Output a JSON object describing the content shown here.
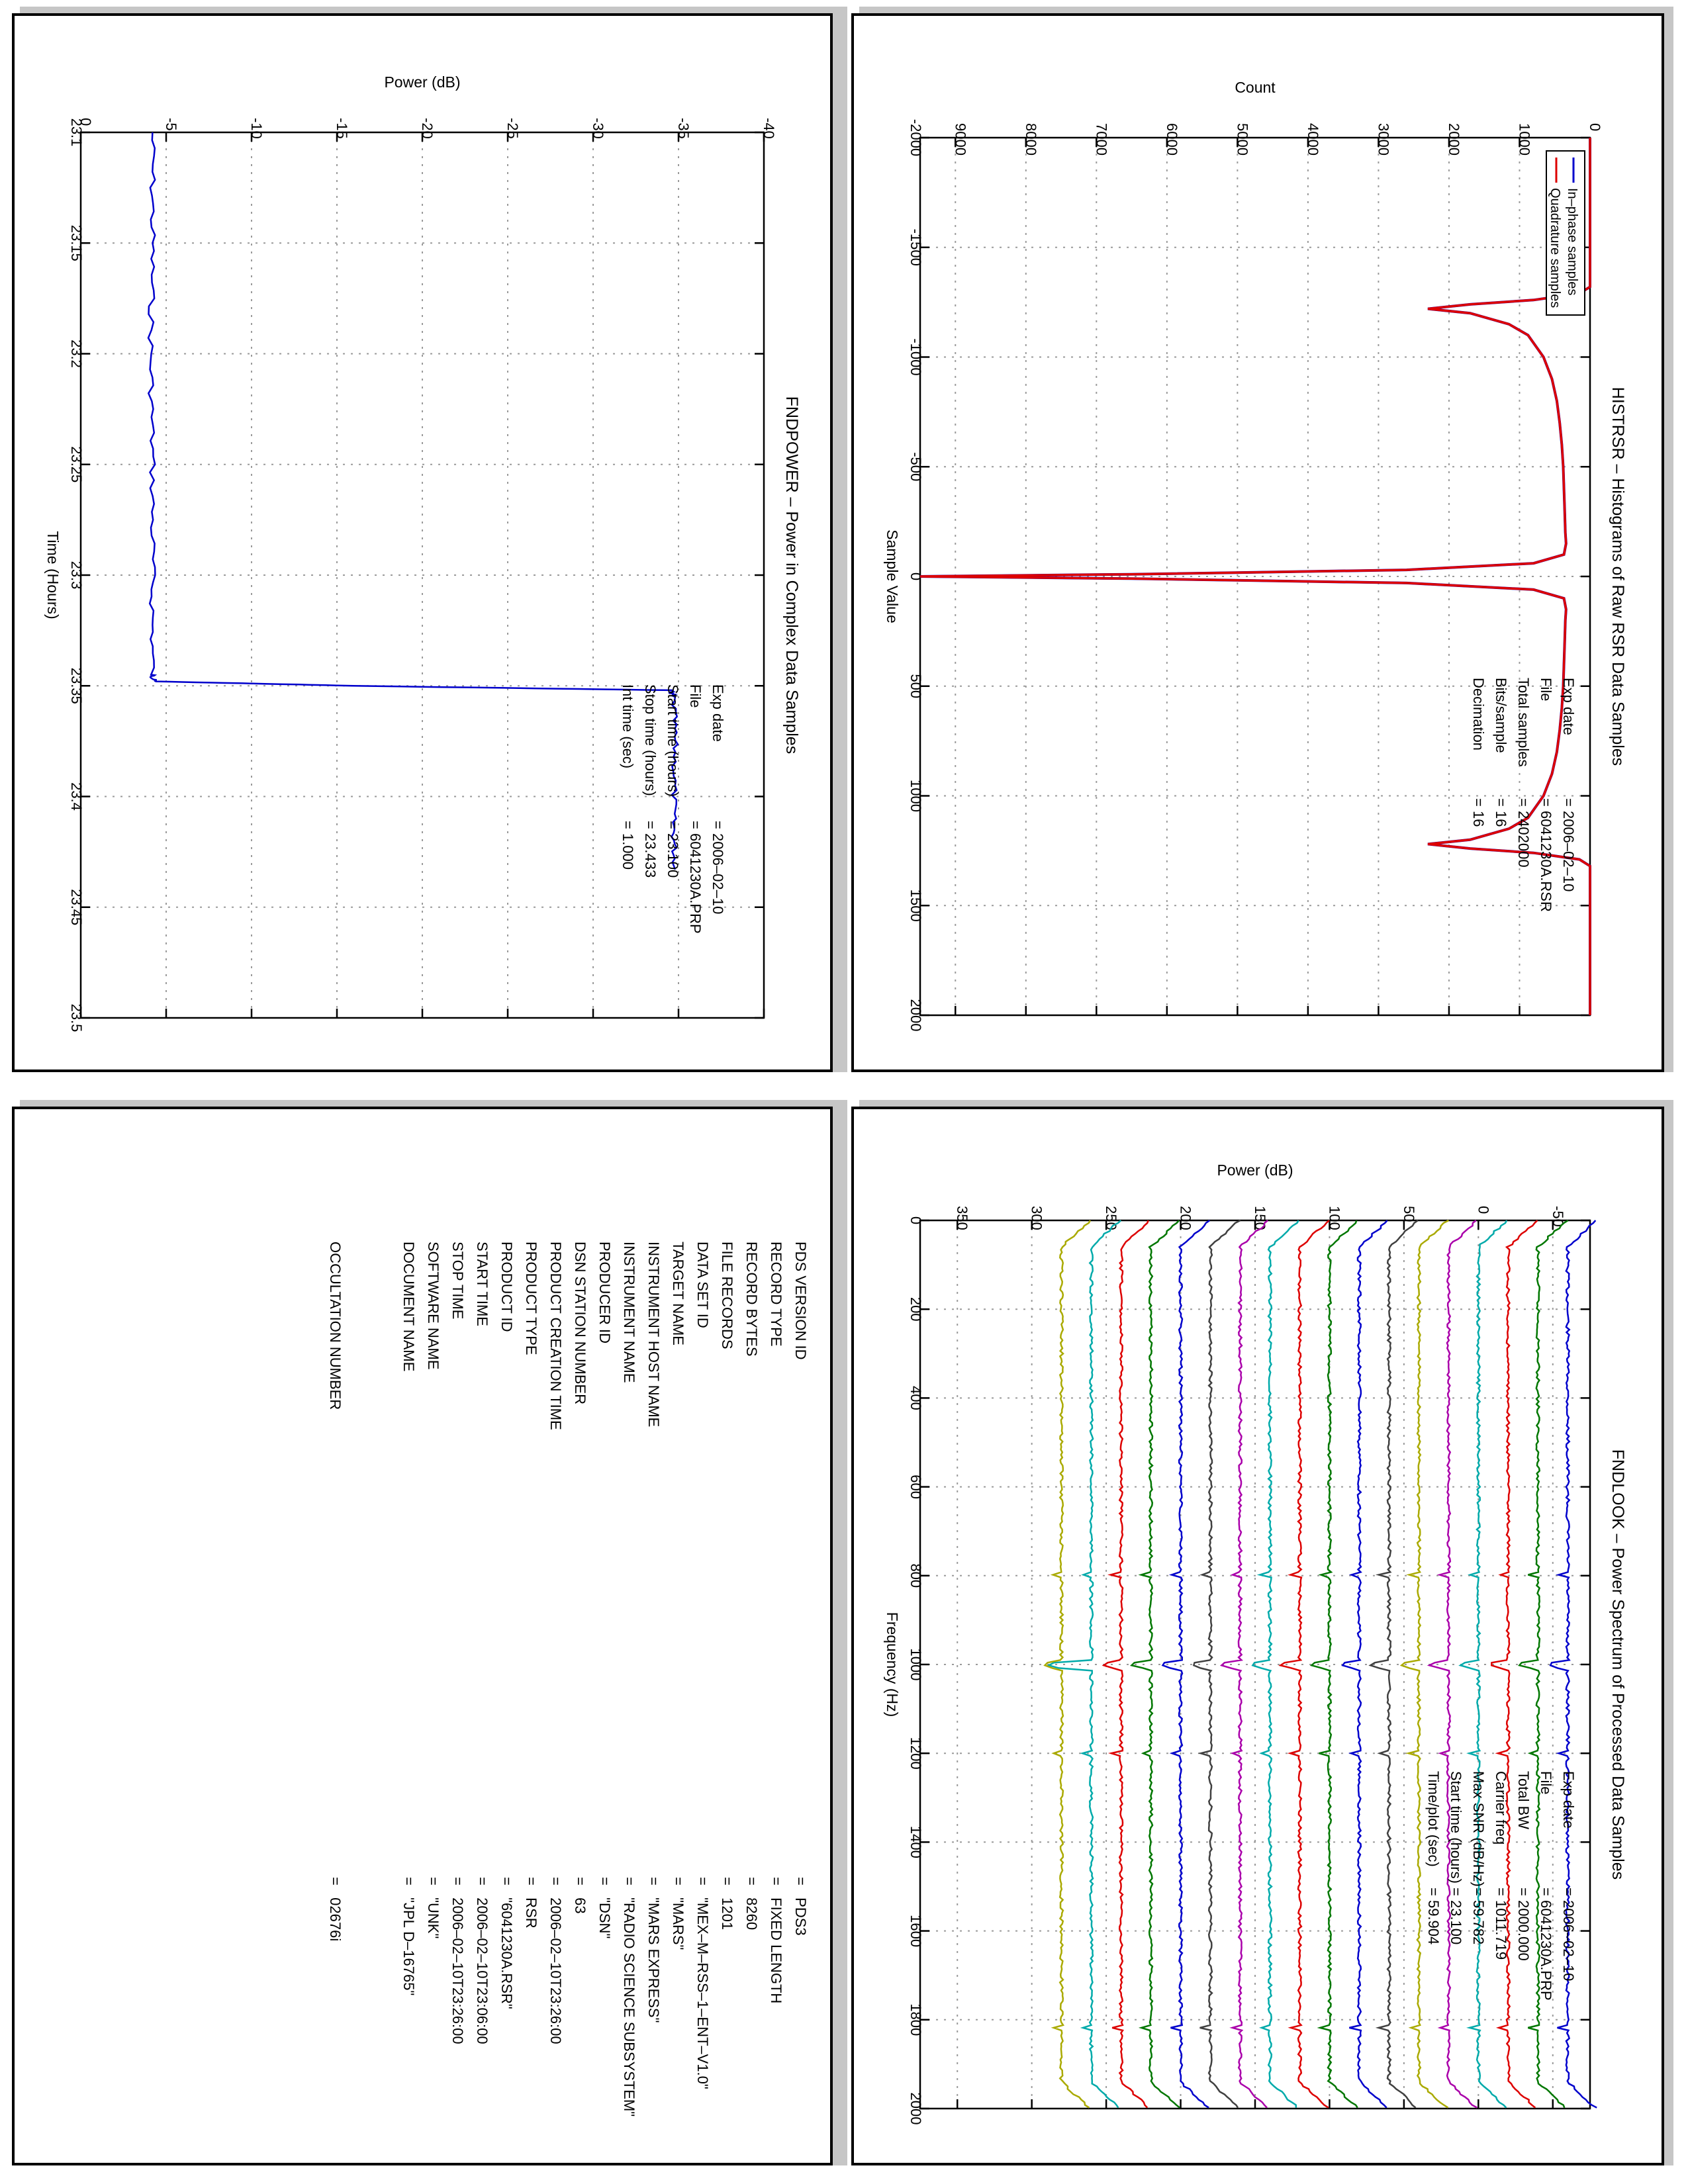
{
  "chart_data": [
    {
      "type": "line",
      "title": "FNDPOWER – Power in Complex Data Samples",
      "xlabel": "Time (Hours)",
      "ylabel": "Power (dB)",
      "xlim": [
        23.1,
        23.5
      ],
      "ylim": [
        -40,
        0
      ],
      "x_ticks": [
        "23.1",
        "23.15",
        "23.2",
        "23.25",
        "23.3",
        "23.35",
        "23.4",
        "23.45",
        "23.5"
      ],
      "y_ticks": [
        "-40",
        "-35",
        "-30",
        "-25",
        "-20",
        "-15",
        "-10",
        "-5",
        "0"
      ],
      "grid": true,
      "series": [
        {
          "color": "#0000cc",
          "x": [
            23.1,
            23.15,
            23.2,
            23.25,
            23.3,
            23.345,
            23.348,
            23.35,
            23.352,
            23.355,
            23.38,
            23.41,
            23.433
          ],
          "y": [
            -4.2,
            -4.2,
            -4.1,
            -4.2,
            -4.2,
            -4.2,
            -4.3,
            -16.0,
            -34.5,
            -34.7,
            -34.8,
            -34.7,
            -34.8
          ]
        }
      ],
      "annotations": [
        {
          "label": "Exp date",
          "value": "= 2006–02–10"
        },
        {
          "label": "File",
          "value": "= 6041230A.PRP"
        },
        {
          "label": "Start time (hours)",
          "value": "= 23.100"
        },
        {
          "label": "Stop time (hours)",
          "value": "= 23.433"
        },
        {
          "label": "Int time (sec)",
          "value": "=     1.000"
        }
      ]
    },
    {
      "type": "line",
      "title": "HISTRSR – Histograms of Raw RSR Data Samples",
      "xlabel": "Sample Value",
      "ylabel": "Count",
      "xlim": [
        -2000,
        2000
      ],
      "ylim": [
        0,
        9500
      ],
      "x_ticks": [
        "-2000",
        "-1500",
        "-1000",
        "-500",
        "0",
        "500",
        "1000",
        "1500",
        "2000"
      ],
      "y_ticks": [
        "0",
        "1000",
        "2000",
        "3000",
        "4000",
        "5000",
        "6000",
        "7000",
        "8000",
        "9000"
      ],
      "grid": true,
      "legend_position": "top-right",
      "series": [
        {
          "name": "In–phase samples",
          "color": "#0000cc",
          "x": [
            -2000,
            -1320,
            -1290,
            -1260,
            -1240,
            -1220,
            -1200,
            -1150,
            -1100,
            -1000,
            -900,
            -800,
            -700,
            -600,
            -500,
            -400,
            -300,
            -200,
            -150,
            -100,
            -60,
            -30,
            -10,
            0,
            10,
            30,
            60,
            100,
            150,
            200,
            300,
            400,
            500,
            600,
            700,
            800,
            900,
            1000,
            1100,
            1150,
            1200,
            1220,
            1240,
            1260,
            1290,
            1320,
            2000
          ],
          "y": [
            0,
            0,
            150,
            800,
            1700,
            2300,
            1700,
            1150,
            880,
            660,
            540,
            470,
            430,
            400,
            380,
            370,
            360,
            350,
            340,
            370,
            800,
            2600,
            6500,
            9500,
            6500,
            2600,
            800,
            370,
            340,
            350,
            360,
            370,
            380,
            400,
            430,
            470,
            540,
            660,
            880,
            1150,
            1700,
            2300,
            1700,
            800,
            150,
            0,
            0
          ]
        },
        {
          "name": "Quadrature samples",
          "color": "#dd0000",
          "x": [
            -2000,
            -1320,
            -1290,
            -1260,
            -1240,
            -1220,
            -1200,
            -1150,
            -1100,
            -1000,
            -900,
            -800,
            -700,
            -600,
            -500,
            -400,
            -300,
            -200,
            -150,
            -100,
            -60,
            -30,
            -10,
            0,
            10,
            30,
            60,
            100,
            150,
            200,
            300,
            400,
            500,
            600,
            700,
            800,
            900,
            1000,
            1100,
            1150,
            1200,
            1220,
            1240,
            1260,
            1290,
            1320,
            2000
          ],
          "y": [
            0,
            0,
            150,
            800,
            1700,
            2300,
            1700,
            1150,
            880,
            660,
            540,
            470,
            430,
            400,
            380,
            370,
            360,
            350,
            340,
            370,
            800,
            2600,
            6500,
            9500,
            6500,
            2600,
            800,
            370,
            340,
            350,
            360,
            370,
            380,
            400,
            430,
            470,
            540,
            660,
            880,
            1150,
            1700,
            2300,
            1700,
            800,
            150,
            0,
            0
          ]
        }
      ],
      "annotations": [
        {
          "label": "Exp date",
          "value": "= 2006–02–10"
        },
        {
          "label": "File",
          "value": "= 6041230A.RSR"
        },
        {
          "label": "Total samples",
          "value": "=   2402000"
        },
        {
          "label": "Bits/sample",
          "value": "=       16"
        },
        {
          "label": "Decimation",
          "value": "=       16"
        }
      ]
    },
    {
      "type": "line",
      "title": "FNDLOOK – Power Spectrum of Processed Data Samples",
      "xlabel": "Frequency (Hz)",
      "ylabel": "Power (dB)",
      "xlim": [
        0,
        2000
      ],
      "ylim": [
        -75,
        375
      ],
      "x_ticks": [
        "0",
        "200",
        "400",
        "600",
        "800",
        "1000",
        "1200",
        "1400",
        "1600",
        "1800",
        "2000"
      ],
      "y_ticks": [
        "-50",
        "0",
        "50",
        "100",
        "150",
        "200",
        "250",
        "300",
        "350"
      ],
      "grid": true,
      "trace_offset_db": [
        -60,
        -40,
        -20,
        0,
        20,
        40,
        60,
        80,
        100,
        120,
        140,
        160,
        180,
        200,
        220,
        240,
        260,
        280
      ],
      "trace_colors": [
        "#0000cc",
        "#007700",
        "#dd0000",
        "#00aaaa",
        "#aa00aa",
        "#aaaa00",
        "#404040",
        "#0000cc",
        "#007700",
        "#dd0000",
        "#00aaaa",
        "#aa00aa",
        "#404040",
        "#0000cc",
        "#007700",
        "#dd0000",
        "#00aaaa",
        "#aaaa00"
      ],
      "annotations": [
        {
          "label": "Exp date",
          "value": "= 2006–02–10"
        },
        {
          "label": "File",
          "value": "= 6041230A.PRP"
        },
        {
          "label": "Total BW",
          "value": "=    2000.000"
        },
        {
          "label": "Carrier freq",
          "value": "=    1011.719"
        },
        {
          "label": "Max SNR (dB/Hz)",
          "value": "=     59.782"
        },
        {
          "label": "Start time (hours)",
          "value": "=    23.100"
        },
        {
          "label": "Time/plot (sec)",
          "value": "=     59.904"
        }
      ]
    }
  ],
  "label_page": {
    "rows": [
      {
        "key": "PDS VERSION ID",
        "value": "=   PDS3"
      },
      {
        "key": "RECORD TYPE",
        "value": "=   FIXED LENGTH"
      },
      {
        "key": "RECORD BYTES",
        "value": "=   8260"
      },
      {
        "key": "FILE RECORDS",
        "value": "=   1201"
      },
      {
        "key": "DATA SET ID",
        "value": "=   \"MEX–M–RSS–1–ENT–V1.0\""
      },
      {
        "key": "TARGET NAME",
        "value": "=   \"MARS\""
      },
      {
        "key": "INSTRUMENT HOST NAME",
        "value": "=   \"MARS EXPRESS\""
      },
      {
        "key": "INSTRUMENT NAME",
        "value": "=   \"RADIO SCIENCE SUBSYSTEM\""
      },
      {
        "key": "PRODUCER ID",
        "value": "=   \"DSN\""
      },
      {
        "key": "DSN STATION NUMBER",
        "value": "=   63"
      },
      {
        "key": "PRODUCT CREATION TIME",
        "value": "=   2006–02–10T23:26:00"
      },
      {
        "key": "PRODUCT TYPE",
        "value": "=   RSR"
      },
      {
        "key": "PRODUCT ID",
        "value": "=   \"6041230A.RSR\""
      },
      {
        "key": "START TIME",
        "value": "=   2006–02–10T23:06:00"
      },
      {
        "key": "STOP TIME",
        "value": "=   2006–02–10T23:26:00"
      },
      {
        "key": "SOFTWARE NAME",
        "value": "=   \"UNK\""
      },
      {
        "key": "DOCUMENT NAME",
        "value": "=   \"JPL D–16765\""
      },
      {
        "key": "",
        "value": ""
      },
      {
        "key": "",
        "value": ""
      },
      {
        "key": "OCCULTATION NUMBER",
        "value": "=   02676i"
      }
    ]
  },
  "colors": {
    "frame": "#000000",
    "shadow": "#c6c6c6",
    "grid": "#9a9a9a"
  }
}
